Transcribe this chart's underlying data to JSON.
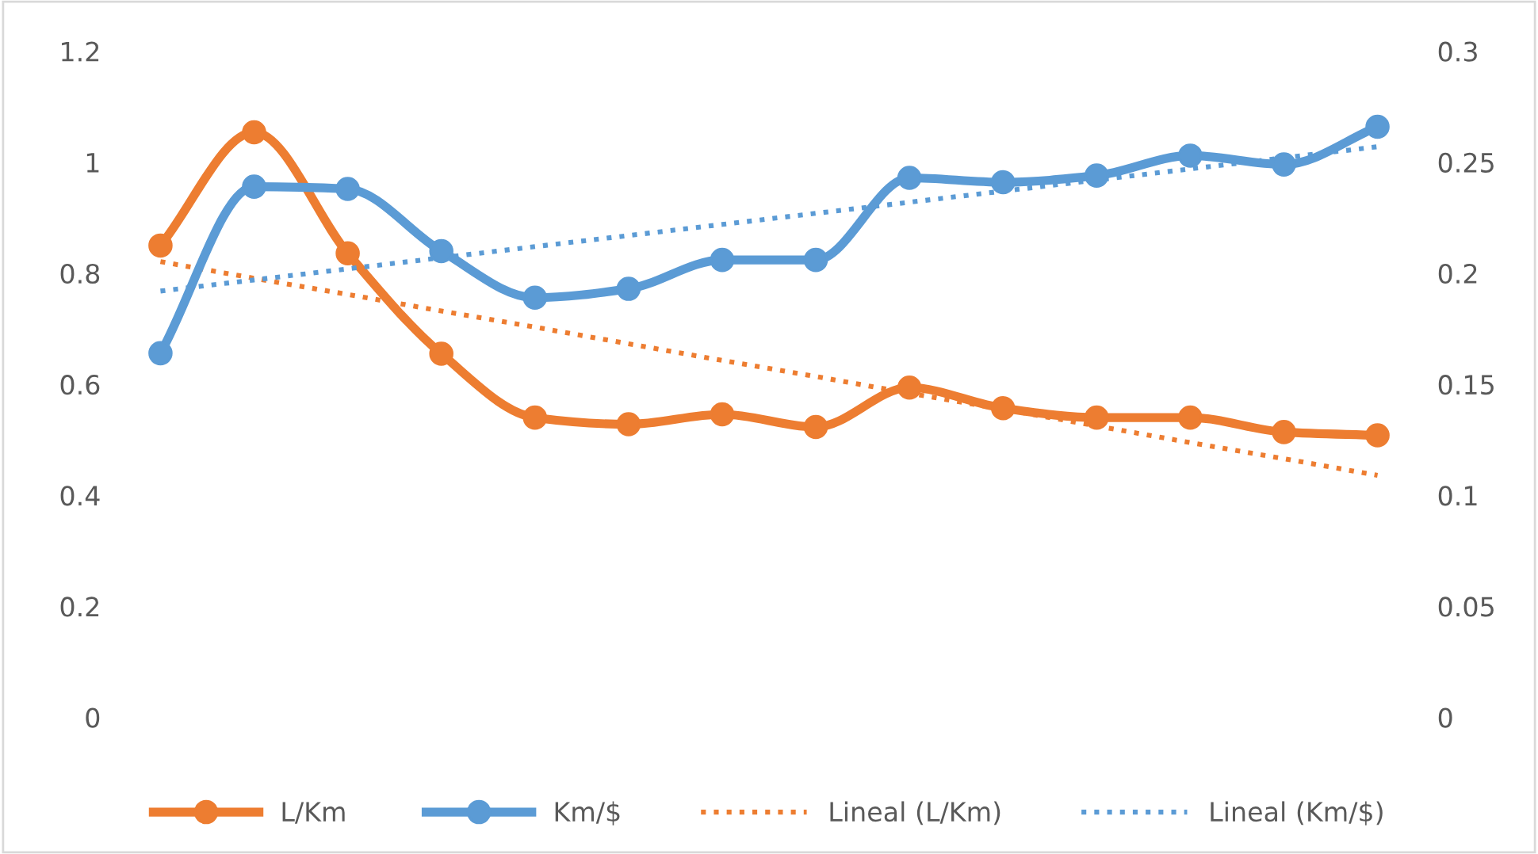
{
  "chart_data": {
    "type": "line",
    "categories": [
      null,
      null,
      null,
      null,
      null,
      null,
      null,
      null,
      null,
      null,
      null,
      null,
      null,
      null
    ],
    "series": [
      {
        "name": "L/Km",
        "color": "#ed7d31",
        "marker": "circle",
        "line_style": "solid",
        "values": [
          0.85,
          1.054,
          0.836,
          0.655,
          0.54,
          0.528,
          0.546,
          0.523,
          0.594,
          0.557,
          0.54,
          0.54,
          0.514,
          0.508
        ]
      },
      {
        "name": "Km/$",
        "color": "#5b9bd5",
        "marker": "circle",
        "line_style": "solid",
        "axis": "y2",
        "values": [
          0.164,
          0.239,
          0.238,
          0.21,
          0.189,
          0.193,
          0.206,
          0.206,
          0.243,
          0.241,
          0.244,
          0.253,
          0.249,
          0.266
        ]
      },
      {
        "name": "Lineal (L/Km)",
        "color": "#ed7d31",
        "marker": "none",
        "line_style": "dotted",
        "values": [
          0.821,
          0.791,
          0.762,
          0.732,
          0.703,
          0.673,
          0.643,
          0.614,
          0.584,
          0.555,
          0.525,
          0.495,
          0.466,
          0.436
        ]
      },
      {
        "name": "Lineal (Km/$)",
        "color": "#5b9bd5",
        "marker": "none",
        "line_style": "dotted",
        "axis": "y2",
        "values": [
          0.192,
          0.197,
          0.202,
          0.207,
          0.212,
          0.217,
          0.222,
          0.227,
          0.232,
          0.237,
          0.242,
          0.247,
          0.252,
          0.257
        ]
      }
    ],
    "ylim": [
      0,
      1.2
    ],
    "yticks": [
      0,
      0.2,
      0.4,
      0.6,
      0.8,
      1,
      1.2
    ],
    "y2lim": [
      0,
      0.3
    ],
    "y2ticks": [
      0,
      0.05,
      0.1,
      0.15,
      0.2,
      0.25,
      0.3
    ],
    "tick_labels": "y",
    "grid": false,
    "legend": "bottom"
  }
}
